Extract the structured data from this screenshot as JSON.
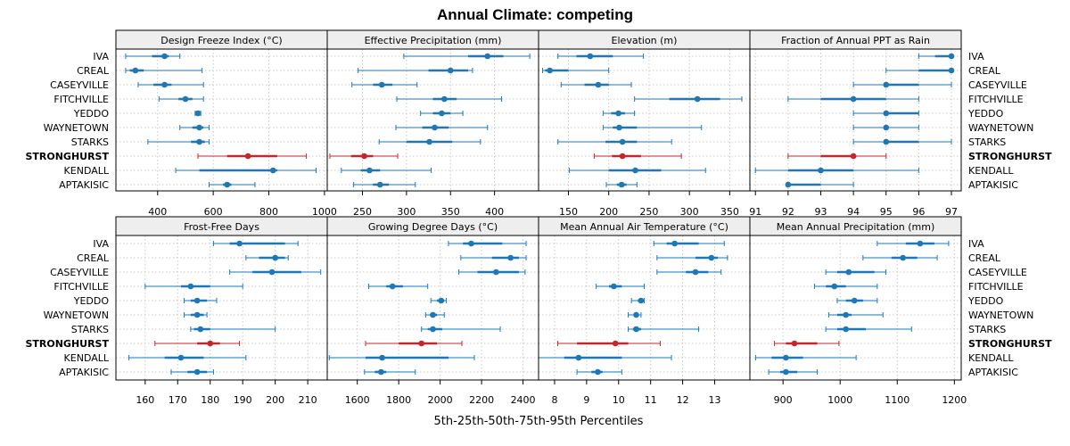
{
  "chart_data": {
    "type": "dotplot-percentiles",
    "title": "Annual Climate: competing",
    "xlabel": "5th-25th-50th-75th-95th Percentiles",
    "sites": [
      "IVA",
      "CREAL",
      "CASEYVILLE",
      "FITCHVILLE",
      "YEDDO",
      "WAYNETOWN",
      "STARKS",
      "STRONGHURST",
      "KENDALL",
      "APTAKISIC"
    ],
    "highlight": "STRONGHURST",
    "colors": {
      "normal": "#1f77b4",
      "highlight": "#c0282d",
      "strip_bg": "#eeeeee",
      "grid": "#c8c8c8"
    },
    "panels": [
      {
        "title": "Design Freeze Index (°C)",
        "xlim": [
          250,
          1010
        ],
        "ticks": [
          400,
          600,
          800,
          1000
        ],
        "data": [
          [
            285,
            380,
            425,
            440,
            480
          ],
          [
            285,
            300,
            320,
            350,
            560
          ],
          [
            330,
            385,
            425,
            450,
            565
          ],
          [
            405,
            475,
            500,
            525,
            565
          ],
          [
            535,
            540,
            545,
            550,
            555
          ],
          [
            480,
            525,
            550,
            565,
            585
          ],
          [
            365,
            520,
            550,
            570,
            585
          ],
          [
            545,
            650,
            725,
            830,
            935
          ],
          [
            465,
            550,
            815,
            830,
            970
          ],
          [
            585,
            635,
            650,
            665,
            750
          ]
        ]
      },
      {
        "title": "Effective Precipitation (mm)",
        "xlim": [
          210,
          450
        ],
        "ticks": [
          250,
          300,
          350,
          400
        ],
        "data": [
          [
            297,
            370,
            392,
            410,
            440
          ],
          [
            245,
            325,
            350,
            370,
            375
          ],
          [
            238,
            262,
            272,
            284,
            312
          ],
          [
            289,
            330,
            343,
            357,
            408
          ],
          [
            316,
            330,
            340,
            350,
            364
          ],
          [
            288,
            318,
            332,
            348,
            392
          ],
          [
            269,
            300,
            326,
            352,
            384
          ],
          [
            213,
            237,
            252,
            262,
            290
          ],
          [
            226,
            248,
            258,
            270,
            328
          ],
          [
            240,
            262,
            270,
            280,
            310
          ]
        ]
      },
      {
        "title": "Elevation (m)",
        "xlim": [
          113,
          375
        ],
        "ticks": [
          150,
          200,
          250,
          300,
          350
        ],
        "data": [
          [
            137,
            160,
            177,
            205,
            243
          ],
          [
            118,
            121,
            127,
            150,
            200
          ],
          [
            141,
            170,
            187,
            200,
            228
          ],
          [
            232,
            275,
            310,
            338,
            365
          ],
          [
            193,
            203,
            212,
            220,
            232
          ],
          [
            193,
            205,
            213,
            235,
            315
          ],
          [
            137,
            196,
            217,
            235,
            278
          ],
          [
            182,
            204,
            217,
            240,
            290
          ],
          [
            151,
            200,
            233,
            265,
            320
          ],
          [
            197,
            210,
            216,
            222,
            235
          ]
        ]
      },
      {
        "title": "Fraction of Annual PPT as Rain",
        "xlim": [
          90.83,
          97.3
        ],
        "ticks": [
          91,
          92,
          93,
          94,
          95,
          96,
          97
        ],
        "data": [
          [
            96.0,
            96.5,
            97.0,
            97.0,
            97.0
          ],
          [
            95.0,
            96.0,
            97.0,
            97.0,
            97.0
          ],
          [
            94.0,
            95.0,
            95.0,
            96.0,
            97.0
          ],
          [
            92.0,
            93.0,
            94.0,
            95.0,
            96.0
          ],
          [
            94.0,
            95.0,
            95.0,
            96.0,
            96.0
          ],
          [
            94.0,
            95.0,
            95.0,
            95.0,
            96.0
          ],
          [
            94.0,
            95.0,
            95.0,
            96.0,
            97.0
          ],
          [
            92.0,
            93.0,
            94.0,
            94.0,
            95.0
          ],
          [
            91.0,
            92.0,
            93.0,
            94.0,
            96.0
          ],
          [
            92.0,
            92.0,
            92.0,
            93.0,
            94.0
          ]
        ]
      },
      {
        "title": "Frost-Free Days",
        "xlim": [
          151,
          216
        ],
        "ticks": [
          160,
          170,
          180,
          190,
          200,
          210
        ],
        "data": [
          [
            181,
            186,
            189,
            203,
            207
          ],
          [
            191,
            195,
            200,
            203,
            204
          ],
          [
            186,
            193,
            199,
            208,
            214
          ],
          [
            160,
            171,
            174,
            180,
            190
          ],
          [
            172,
            174,
            176,
            179,
            182
          ],
          [
            172,
            174,
            176,
            178,
            179
          ],
          [
            174,
            175,
            177,
            180,
            200
          ],
          [
            163,
            176,
            180,
            183,
            189
          ],
          [
            155,
            166,
            171,
            178,
            191
          ],
          [
            168,
            173,
            176,
            179,
            181
          ]
        ]
      },
      {
        "title": "Growing Degree Days (°C)",
        "xlim": [
          1455,
          2475
        ],
        "ticks": [
          1600,
          1800,
          2000,
          2200,
          2400
        ],
        "data": [
          [
            2040,
            2110,
            2150,
            2300,
            2415
          ],
          [
            2100,
            2250,
            2340,
            2380,
            2415
          ],
          [
            2090,
            2180,
            2270,
            2380,
            2410
          ],
          [
            1655,
            1740,
            1770,
            1820,
            1940
          ],
          [
            1955,
            1985,
            2005,
            2020,
            2030
          ],
          [
            1930,
            1950,
            1965,
            1985,
            2020
          ],
          [
            1910,
            1940,
            1965,
            2010,
            2290
          ],
          [
            1640,
            1800,
            1910,
            1985,
            2105
          ],
          [
            1465,
            1640,
            1720,
            2040,
            2165
          ],
          [
            1635,
            1685,
            1715,
            1740,
            1880
          ]
        ]
      },
      {
        "title": "Mean Annual Air Temperature (°C)",
        "xlim": [
          7.5,
          14.1
        ],
        "ticks": [
          8,
          9,
          10,
          11,
          12,
          13
        ],
        "data": [
          [
            11.1,
            11.5,
            11.75,
            12.5,
            13.3
          ],
          [
            11.2,
            12.4,
            12.9,
            13.1,
            13.4
          ],
          [
            11.2,
            12.1,
            12.4,
            12.8,
            13.2
          ],
          [
            9.3,
            9.7,
            9.85,
            10.1,
            10.8
          ],
          [
            10.4,
            10.6,
            10.7,
            10.8,
            10.8
          ],
          [
            10.3,
            10.5,
            10.55,
            10.6,
            10.7
          ],
          [
            10.3,
            10.45,
            10.55,
            10.7,
            12.5
          ],
          [
            8.1,
            8.7,
            9.9,
            10.3,
            11.3
          ],
          [
            7.5,
            8.3,
            8.75,
            10.1,
            11.65
          ],
          [
            8.7,
            9.15,
            9.35,
            9.5,
            10.1
          ]
        ]
      },
      {
        "title": "Mean Annual Precipitation (mm)",
        "xlim": [
          842,
          1212
        ],
        "ticks": [
          900,
          1000,
          1100,
          1200
        ],
        "data": [
          [
            1065,
            1115,
            1140,
            1165,
            1190
          ],
          [
            1040,
            1090,
            1110,
            1135,
            1170
          ],
          [
            975,
            995,
            1015,
            1060,
            1080
          ],
          [
            955,
            975,
            990,
            1010,
            1065
          ],
          [
            995,
            1010,
            1025,
            1040,
            1065
          ],
          [
            980,
            995,
            1010,
            1020,
            1075
          ],
          [
            975,
            995,
            1010,
            1045,
            1125
          ],
          [
            885,
            905,
            920,
            960,
            998
          ],
          [
            852,
            880,
            905,
            935,
            1028
          ],
          [
            875,
            895,
            905,
            925,
            960
          ]
        ]
      }
    ]
  }
}
